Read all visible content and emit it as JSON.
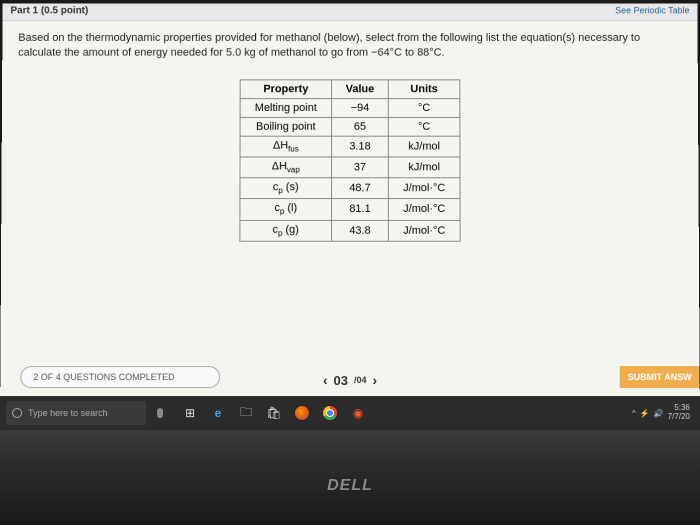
{
  "topbar": {
    "left": "Part 1  (0.5 point)",
    "right": "See Periodic Table"
  },
  "question": {
    "text": "Based on the thermodynamic properties provided for methanol (below), select from the following list the equation(s) necessary to calculate the amount of energy needed for 5.0 kg of methanol to go from −64°C to 88°C."
  },
  "table": {
    "headers": [
      "Property",
      "Value",
      "Units"
    ],
    "rows": [
      {
        "prop": "Melting point",
        "val": "−94",
        "unit": "°C"
      },
      {
        "prop": "Boiling point",
        "val": "65",
        "unit": "°C"
      },
      {
        "prop": "ΔHfus",
        "val": "3.18",
        "unit": "kJ/mol",
        "sub": "fus"
      },
      {
        "prop": "ΔHvap",
        "val": "37",
        "unit": "kJ/mol",
        "sub": "vap"
      },
      {
        "prop": "cp (s)",
        "val": "48.7",
        "unit": "J/mol·°C"
      },
      {
        "prop": "cp (l)",
        "val": "81.1",
        "unit": "J/mol·°C"
      },
      {
        "prop": "cp (g)",
        "val": "43.8",
        "unit": "J/mol·°C"
      }
    ]
  },
  "progress": {
    "text": "2 OF 4 QUESTIONS COMPLETED"
  },
  "nav": {
    "current": "03",
    "total": "/04",
    "prev": "‹",
    "next": "›"
  },
  "submit": {
    "label": "SUBMIT ANSW"
  },
  "taskbar": {
    "search": "Type here to search",
    "clock": {
      "time": "5:36 ",
      "date": "7/7/20"
    }
  },
  "brand": "DELL"
}
